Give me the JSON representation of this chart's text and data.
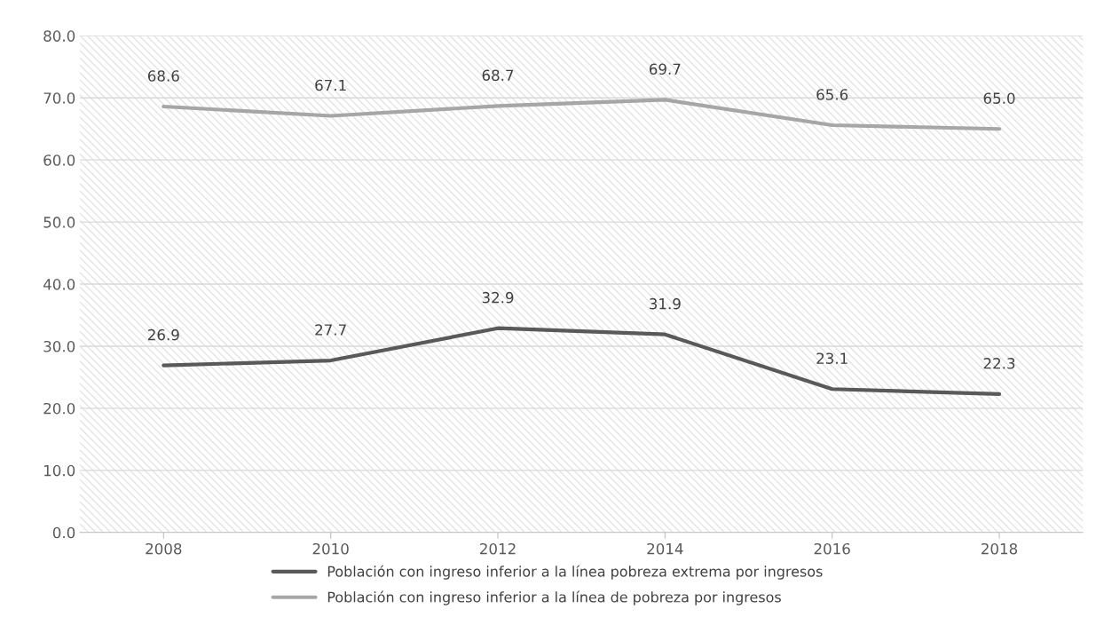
{
  "chart_data": {
    "type": "line",
    "categories": [
      "2008",
      "2010",
      "2012",
      "2014",
      "2016",
      "2018"
    ],
    "series": [
      {
        "name": "Población con ingreso inferior a la línea pobreza extrema por ingresos",
        "color": "#595959",
        "values": [
          26.9,
          27.7,
          32.9,
          31.9,
          23.1,
          22.3
        ],
        "value_labels": [
          "26.9",
          "27.7",
          "32.9",
          "31.9",
          "23.1",
          "22.3"
        ]
      },
      {
        "name": "Población con ingreso inferior a la línea de pobreza por ingresos",
        "color": "#a6a6a6",
        "values": [
          68.6,
          67.1,
          68.7,
          69.7,
          65.6,
          65.0
        ],
        "value_labels": [
          "68.6",
          "67.1",
          "68.7",
          "69.7",
          "65.6",
          "65.0"
        ]
      }
    ],
    "ylim": [
      0,
      80
    ],
    "yticks": [
      {
        "value": 0,
        "label": "0.0"
      },
      {
        "value": 10,
        "label": "10.0"
      },
      {
        "value": 20,
        "label": "20.0"
      },
      {
        "value": 30,
        "label": "30.0"
      },
      {
        "value": 40,
        "label": "40.0"
      },
      {
        "value": 50,
        "label": "50.0"
      },
      {
        "value": 60,
        "label": "60.0"
      },
      {
        "value": 70,
        "label": "70.0"
      },
      {
        "value": 80,
        "label": "80.0"
      }
    ],
    "grid": "y",
    "legend": "bottom",
    "marker": "none",
    "line_style": "solid"
  }
}
